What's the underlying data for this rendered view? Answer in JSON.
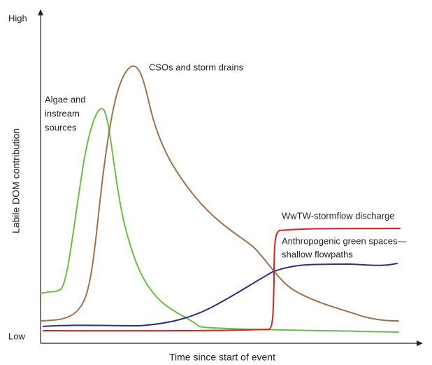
{
  "axes": {
    "y_high": "High",
    "y_low": "Low",
    "y_label": "Labile DOM contribution",
    "x_label": "Time since start of event"
  },
  "curves": [
    {
      "label_lines": [
        "CSOs and storm drains"
      ]
    },
    {
      "label_lines": [
        "Algae and",
        "instream",
        "sources"
      ]
    },
    {
      "label_lines": [
        "WwTW-stormflow discharge"
      ]
    },
    {
      "label_lines": [
        "Anthropogenic green spaces—",
        "shallow flowpaths"
      ]
    }
  ]
}
